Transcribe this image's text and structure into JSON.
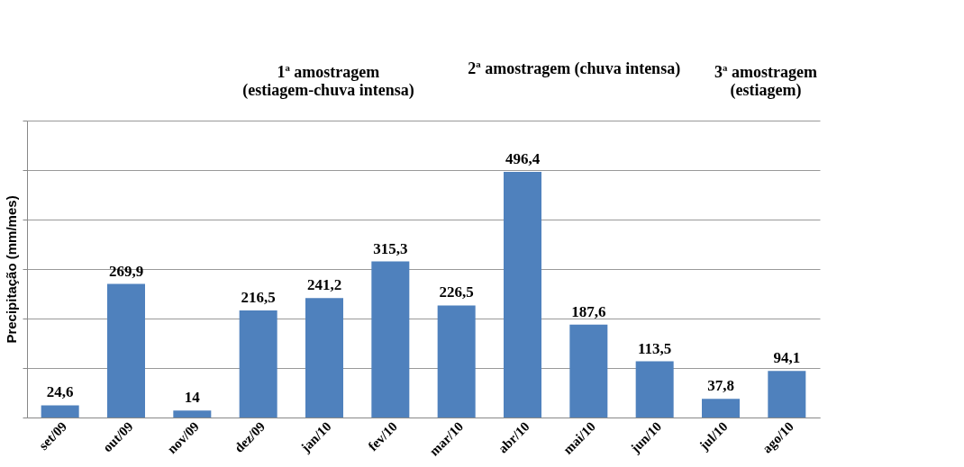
{
  "chart_data": {
    "type": "bar",
    "ylabel": "Precipitação (mm/mes)",
    "categories": [
      "set/09",
      "out/09",
      "nov/09",
      "dez/09",
      "jan/10",
      "fev/10",
      "mar/10",
      "abr/10",
      "mai/10",
      "jun/10",
      "jul/10",
      "ago/10"
    ],
    "values": [
      24.6,
      269.9,
      14,
      216.5,
      241.2,
      315.3,
      226.5,
      496.4,
      187.6,
      113.5,
      37.8,
      94.1
    ],
    "value_labels": [
      "24,6",
      "269,9",
      "14",
      "216,5",
      "241,2",
      "315,3",
      "226,5",
      "496,4",
      "187,6",
      "113,5",
      "37,8",
      "94,1"
    ],
    "color": "#4f81bd",
    "ylim": [
      0,
      600
    ],
    "yticks": [
      {
        "value": 0,
        "label": null
      },
      {
        "value": 100,
        "label": null
      },
      {
        "value": 200,
        "label": null
      },
      {
        "value": 300,
        "label": null
      },
      {
        "value": 400,
        "label": null
      },
      {
        "value": 500,
        "label": null
      },
      {
        "value": 600,
        "label": null
      }
    ],
    "grid": "y",
    "tick_labels": "x",
    "annotations": [
      "1ª amostragem\n(estiagem-chuva intensa)",
      "2ª amostragem (chuva intensa)",
      "3ª amostragem\n(estiagem)"
    ]
  }
}
